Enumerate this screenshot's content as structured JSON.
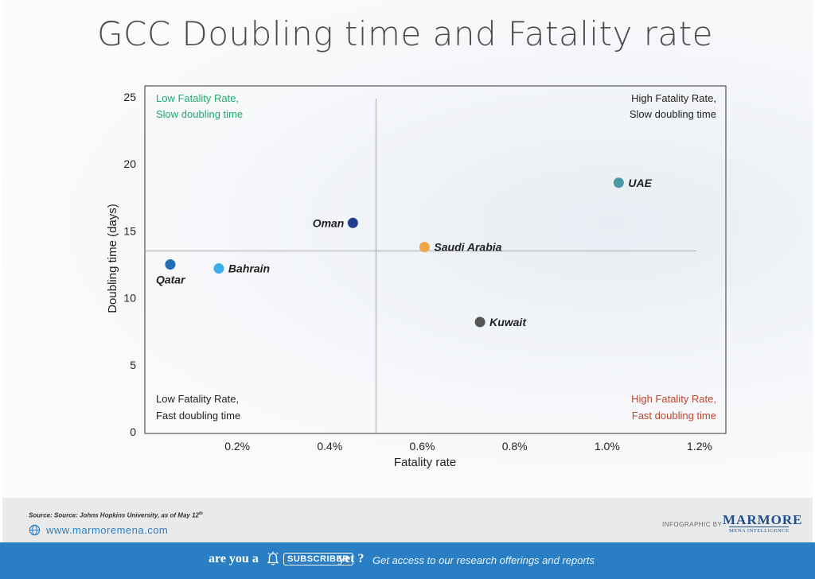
{
  "title": "GCC Doubling time and Fatality rate",
  "chart_data": {
    "type": "scatter",
    "xlabel": "Fatality  rate",
    "ylabel": "Doubling time (days)",
    "xlim": [
      0,
      1.23
    ],
    "ylim": [
      0,
      25
    ],
    "x_ticks": [
      0.2,
      0.4,
      0.6,
      0.8,
      1.0,
      1.2
    ],
    "x_tick_labels": [
      "0.2%",
      "0.4%",
      "0.6%",
      "0.8%",
      "1.0%",
      "1.2%"
    ],
    "y_ticks": [
      0,
      5,
      10,
      15,
      20,
      25
    ],
    "y_tick_labels": [
      "0",
      "5",
      "10",
      "15",
      "20",
      "25"
    ],
    "divider_x": 0.5,
    "divider_y": 13.5,
    "grid": false,
    "points": [
      {
        "name": "Qatar",
        "x": 0.055,
        "y": 12.5,
        "color": "#1f6fb5",
        "label_pos": "below"
      },
      {
        "name": "Bahrain",
        "x": 0.16,
        "y": 12.2,
        "color": "#3aaee8",
        "label_pos": "right"
      },
      {
        "name": "Oman",
        "x": 0.45,
        "y": 15.6,
        "color": "#1f3f8f",
        "label_pos": "left"
      },
      {
        "name": "Saudi Arabia",
        "x": 0.605,
        "y": 13.8,
        "color": "#f0a64b",
        "label_pos": "right"
      },
      {
        "name": "Kuwait",
        "x": 0.725,
        "y": 8.2,
        "color": "#555555",
        "label_pos": "right"
      },
      {
        "name": "UAE",
        "x": 1.025,
        "y": 18.6,
        "color": "#4a98a4",
        "label_pos": "right"
      }
    ],
    "quadrants": {
      "top_left": {
        "line1": "Low Fatality Rate,",
        "line2": "Slow doubling time",
        "color": "#1faa6e"
      },
      "top_right": {
        "line1": "High Fatality Rate,",
        "line2": "Slow doubling time",
        "color": "#222222"
      },
      "bottom_left": {
        "line1": "Low Fatality Rate,",
        "line2": "Fast doubling time",
        "color": "#222222"
      },
      "bottom_right": {
        "line1": "High Fatality Rate,",
        "line2": "Fast doubling time",
        "color": "#c0462f"
      }
    }
  },
  "footer": {
    "source": "Source: Source: Johns Hopkins University, as of May 12",
    "source_sup": "th",
    "website": "www.marmoremena.com",
    "infographic_by": "INFOGRAPHIC BY",
    "logo": "MARMORE",
    "logo_sub": "MENA INTELLIGENCE"
  },
  "banner": {
    "are_you": "are you a",
    "subscriber": "SUBSCRIBER",
    "yet": "yet ?",
    "access": "Get access to our research offerings and reports"
  }
}
